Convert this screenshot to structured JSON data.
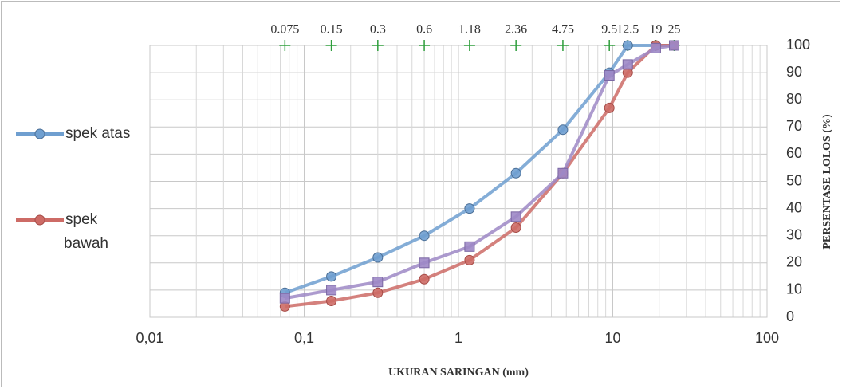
{
  "chart_data": {
    "type": "line",
    "xlabel": "UKURAN SARINGAN (mm)",
    "ylabel": "PERSENTASE LOLOS (%)",
    "x": [
      0.075,
      0.15,
      0.3,
      0.6,
      1.18,
      2.36,
      4.75,
      9.5,
      12.5,
      19,
      25
    ],
    "series": [
      {
        "name": "spek atas",
        "color": "#6f9fd0",
        "marker": "circle",
        "values": [
          9,
          15,
          22,
          30,
          40,
          53,
          69,
          90,
          100,
          100,
          100
        ]
      },
      {
        "name": "spek bawah",
        "color": "#cd6b66",
        "marker": "circle",
        "values": [
          4,
          6,
          9,
          14,
          21,
          33,
          53,
          77,
          90,
          100,
          100
        ]
      },
      {
        "color": "#9d88c6",
        "marker": "square",
        "values": [
          7,
          10,
          13,
          20,
          26,
          37,
          53,
          89,
          93,
          99,
          100
        ]
      }
    ],
    "top_ticks": [
      0.075,
      0.15,
      0.3,
      0.6,
      1.18,
      2.36,
      4.75,
      9.5,
      12.5,
      19,
      25
    ],
    "top_tick_y": 100,
    "top_tick_color": "#2e9e3c",
    "xlog": true,
    "xlim": [
      0.01,
      100
    ],
    "xticks": [
      {
        "value": 0.01,
        "label": "0,01"
      },
      {
        "value": 0.1,
        "label": "0,1"
      },
      1,
      10,
      100
    ],
    "ylim": [
      0,
      100
    ],
    "yticks": [
      0,
      10,
      20,
      30,
      40,
      50,
      60,
      70,
      80,
      90,
      100
    ],
    "grid": true,
    "minor_grid": true,
    "legend": "left"
  }
}
